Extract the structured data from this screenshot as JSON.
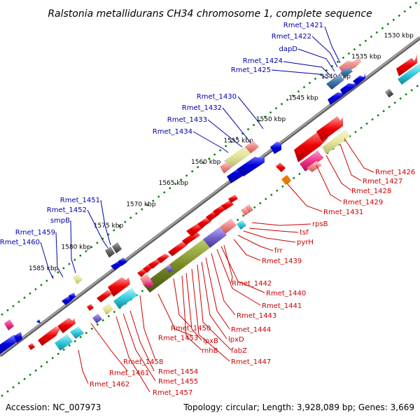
{
  "title": "Ralstonia metallidurans CH34 chromosome 1, complete sequence",
  "accession": "Accession: NC_007973",
  "topology": "Topology: circular; Length: 3,928,089 bp; Genes: 3,669",
  "colors": {
    "plus_label": "#0000aa",
    "minus_label": "#cc0000",
    "backbone": "#808080",
    "scale_dots": "#008000",
    "gene_red": "#ee0000",
    "gene_blue": "#0000dd",
    "gene_cyan": "#33ccdd",
    "gene_olive": "#778822",
    "gene_pink": "#ee3388",
    "gene_purple": "#7766cc",
    "gene_steel": "#4477aa",
    "gene_tan": "#cccc88",
    "gene_salmon": "#ee8888",
    "gene_orange": "#ee7700",
    "gene_gray": "#666666"
  },
  "kbp_ticks": [
    {
      "label": "1530 kbp",
      "pos": 0.035
    },
    {
      "label": "1535 kbp",
      "pos": 0.115
    },
    {
      "label": "1540 kbp",
      "pos": 0.19
    },
    {
      "label": "1545 kbp",
      "pos": 0.27
    },
    {
      "label": "1550 kbp",
      "pos": 0.35
    },
    {
      "label": "1555 kbp",
      "pos": 0.43
    },
    {
      "label": "1560 kbp",
      "pos": 0.51
    },
    {
      "label": "1565 kbp",
      "pos": 0.59
    },
    {
      "label": "1570 kbp",
      "pos": 0.67
    },
    {
      "label": "1575 kbp",
      "pos": 0.75
    },
    {
      "label": "1580 kbp",
      "pos": 0.83
    },
    {
      "label": "1585 kbp",
      "pos": 0.91
    }
  ],
  "plus_genes": [
    {
      "label": "Rmet_1421",
      "pos": 0.135
    },
    {
      "label": "Rmet_1422",
      "pos": 0.145
    },
    {
      "label": "dapD",
      "pos": 0.155
    },
    {
      "label": "Rmet_1424",
      "pos": 0.165
    },
    {
      "label": "Rmet_1425",
      "pos": 0.175
    },
    {
      "label": "Rmet_1430",
      "pos": 0.37
    },
    {
      "label": "Rmet_1432",
      "pos": 0.38
    },
    {
      "label": "Rmet_1433",
      "pos": 0.39
    },
    {
      "label": "Rmet_1434",
      "pos": 0.4
    },
    {
      "label": "Rmet_1451",
      "pos": 0.7
    },
    {
      "label": "Rmet_1452",
      "pos": 0.71
    },
    {
      "label": "smpB",
      "pos": 0.72
    },
    {
      "label": "Rmet_1459",
      "pos": 0.8
    },
    {
      "label": "Rmet_1460",
      "pos": 0.81
    }
  ],
  "minus_genes": [
    {
      "label": "Rmet_1426",
      "pos": 0.36
    },
    {
      "label": "Rmet_1427",
      "pos": 0.37
    },
    {
      "label": "Rmet_1428",
      "pos": 0.38
    },
    {
      "label": "Rmet_1429",
      "pos": 0.39
    },
    {
      "label": "Rmet_1431",
      "pos": 0.4
    },
    {
      "label": "rpsB",
      "pos": 0.55
    },
    {
      "label": "tsf",
      "pos": 0.56
    },
    {
      "label": "pyrH",
      "pos": 0.57
    },
    {
      "label": "frr",
      "pos": 0.58
    },
    {
      "label": "Rmet_1439",
      "pos": 0.59
    },
    {
      "label": "Rmet_1442",
      "pos": 0.6
    },
    {
      "label": "Rmet_1440",
      "pos": 0.61
    },
    {
      "label": "Rmet_1441",
      "pos": 0.62
    },
    {
      "label": "Rmet_1443",
      "pos": 0.63
    },
    {
      "label": "Rmet_1444",
      "pos": 0.64
    },
    {
      "label": "lpxD",
      "pos": 0.65
    },
    {
      "label": "fabZ",
      "pos": 0.66
    },
    {
      "label": "Rmet_1447",
      "pos": 0.67
    },
    {
      "label": "lpxB",
      "pos": 0.68
    },
    {
      "label": "rnhB",
      "pos": 0.69
    },
    {
      "label": "Rmet_1450",
      "pos": 0.7
    },
    {
      "label": "Rmet_1453",
      "pos": 0.71
    },
    {
      "label": "Rmet_1458",
      "pos": 0.72
    },
    {
      "label": "Rmet_1454",
      "pos": 0.73
    },
    {
      "label": "Rmet_1455",
      "pos": 0.74
    },
    {
      "label": "Rmet_1457",
      "pos": 0.75
    },
    {
      "label": "Rmet_1461",
      "pos": 0.76
    },
    {
      "label": "Rmet_1462",
      "pos": 0.77
    }
  ]
}
